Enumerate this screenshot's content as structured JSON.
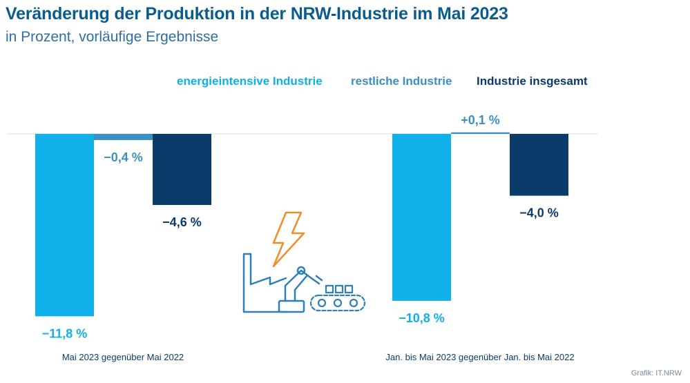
{
  "title": "Veränderung der Produktion in der NRW-Industrie im Mai 2023",
  "subtitle": "in Prozent, vorläufige Ergebnisse",
  "source": "Grafik: IT.NRW",
  "chart_data": {
    "type": "bar",
    "categories": [
      "Mai 2023 gegenüber Mai 2022",
      "Jan. bis Mai 2023 gegenüber Jan. bis Mai 2022"
    ],
    "series": [
      {
        "name": "energieintensive Industrie",
        "values": [
          -11.8,
          -10.8
        ],
        "labels": [
          "−11,8 %",
          "−10,8 %"
        ],
        "color": "#10b0e8"
      },
      {
        "name": "restliche Industrie",
        "values": [
          -0.4,
          0.1
        ],
        "labels": [
          "−0,4 %",
          "+0,1 %"
        ],
        "color": "#3c8fc2"
      },
      {
        "name": "Industrie insgesamt",
        "values": [
          -4.6,
          -4.0
        ],
        "labels": [
          "−4,6 %",
          "−4,0 %"
        ],
        "color": "#0b3b6b"
      }
    ],
    "legend": "top-right",
    "grid": false,
    "icon": "factory-robot-lightning-icon",
    "colors": {
      "text_dark": "#0b3b6b",
      "icon_blue": "#2c7fb8",
      "icon_orange": "#f28c28"
    }
  }
}
